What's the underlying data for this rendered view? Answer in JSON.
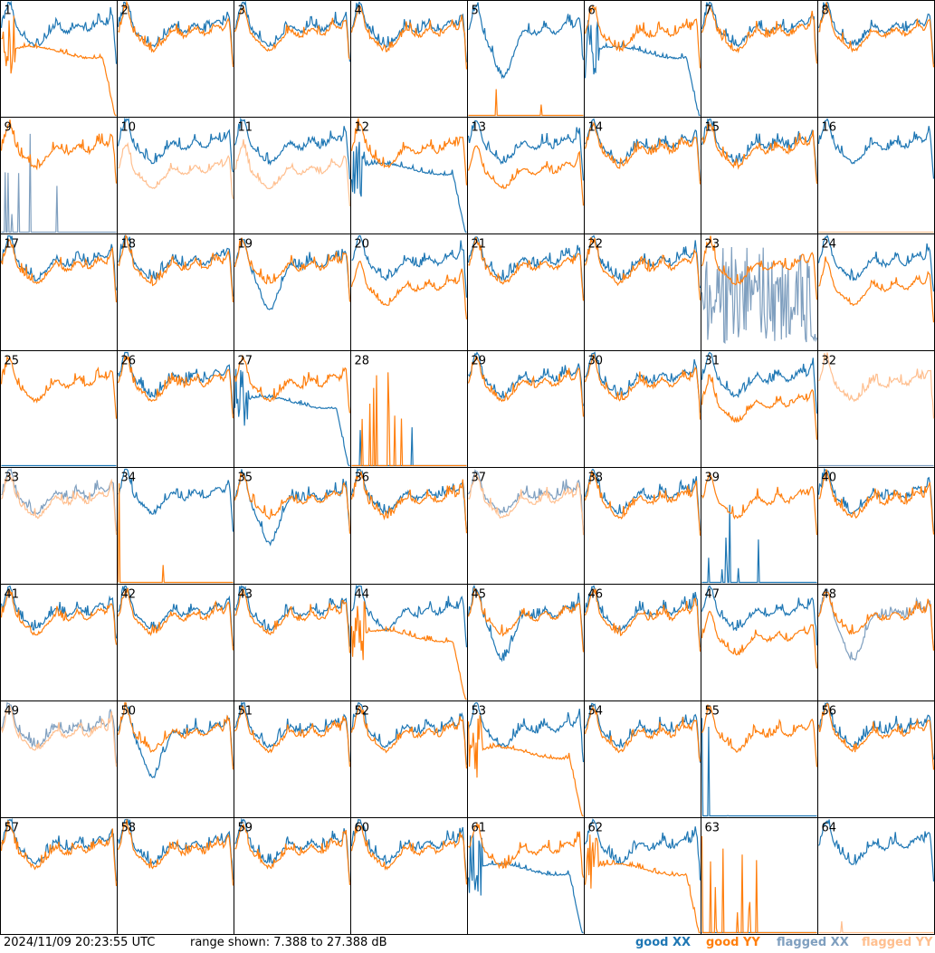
{
  "footer": {
    "timestamp": "2024/11/09 20:23:55 UTC",
    "range_text": "range shown: 7.388 to 27.388 dB"
  },
  "legend": [
    {
      "label": "good XX",
      "color": "#1f77b4"
    },
    {
      "label": "good YY",
      "color": "#ff7f0e"
    },
    {
      "label": "flagged XX",
      "color": "#7f9fbf"
    },
    {
      "label": "flagged YY",
      "color": "#ffbf8f"
    }
  ],
  "chart_data": {
    "type": "line",
    "grid": {
      "rows": 8,
      "cols": 8
    },
    "ylim": [
      7.388,
      27.388
    ],
    "yunit": "dB",
    "series_names": [
      "good XX",
      "good YY",
      "flagged XX",
      "flagged YY"
    ],
    "panels": [
      {
        "id": "1",
        "xx": "normal",
        "yy": "dropoff",
        "xx_flag": false,
        "yy_flag": false
      },
      {
        "id": "2",
        "xx": "normal",
        "yy": "normal",
        "xx_flag": false,
        "yy_flag": false
      },
      {
        "id": "3",
        "xx": "normal",
        "yy": "normal",
        "xx_flag": false,
        "yy_flag": false
      },
      {
        "id": "4",
        "xx": "normal",
        "yy": "normal",
        "xx_flag": false,
        "yy_flag": false
      },
      {
        "id": "5",
        "xx": "low_dip",
        "yy": "flat_zero",
        "xx_flag": false,
        "yy_flag": false
      },
      {
        "id": "6",
        "xx": "dropoff",
        "yy": "normal",
        "xx_flag": false,
        "yy_flag": false
      },
      {
        "id": "7",
        "xx": "normal",
        "yy": "normal",
        "xx_flag": false,
        "yy_flag": false
      },
      {
        "id": "8",
        "xx": "normal",
        "yy": "normal",
        "xx_flag": false,
        "yy_flag": false
      },
      {
        "id": "9",
        "xx": "spikes",
        "yy": "normal",
        "xx_flag": true,
        "yy_flag": false
      },
      {
        "id": "10",
        "xx": "normal",
        "yy": "low_flat",
        "xx_flag": false,
        "yy_flag": true
      },
      {
        "id": "11",
        "xx": "normal",
        "yy": "low_flat",
        "xx_flag": false,
        "yy_flag": true
      },
      {
        "id": "12",
        "xx": "dropoff",
        "yy": "normal",
        "xx_flag": false,
        "yy_flag": false
      },
      {
        "id": "13",
        "xx": "normal",
        "yy": "low_flat",
        "xx_flag": false,
        "yy_flag": false
      },
      {
        "id": "14",
        "xx": "normal",
        "yy": "normal",
        "xx_flag": false,
        "yy_flag": false
      },
      {
        "id": "15",
        "xx": "normal",
        "yy": "normal",
        "xx_flag": false,
        "yy_flag": false
      },
      {
        "id": "16",
        "xx": "normal",
        "yy": "flat_zero",
        "xx_flag": false,
        "yy_flag": true
      },
      {
        "id": "17",
        "xx": "normal",
        "yy": "normal",
        "xx_flag": false,
        "yy_flag": false
      },
      {
        "id": "18",
        "xx": "normal",
        "yy": "normal",
        "xx_flag": false,
        "yy_flag": false
      },
      {
        "id": "19",
        "xx": "low_dip",
        "yy": "normal",
        "xx_flag": false,
        "yy_flag": false
      },
      {
        "id": "20",
        "xx": "normal",
        "yy": "low_flat",
        "xx_flag": false,
        "yy_flag": false
      },
      {
        "id": "21",
        "xx": "normal",
        "yy": "normal",
        "xx_flag": false,
        "yy_flag": false
      },
      {
        "id": "22",
        "xx": "normal",
        "yy": "normal",
        "xx_flag": false,
        "yy_flag": false
      },
      {
        "id": "23",
        "xx": "noise",
        "yy": "normal",
        "xx_flag": true,
        "yy_flag": false
      },
      {
        "id": "24",
        "xx": "normal",
        "yy": "low_flat",
        "xx_flag": false,
        "yy_flag": false
      },
      {
        "id": "25",
        "xx": "flat_zero",
        "yy": "normal",
        "xx_flag": false,
        "yy_flag": false
      },
      {
        "id": "26",
        "xx": "normal",
        "yy": "normal",
        "xx_flag": false,
        "yy_flag": false
      },
      {
        "id": "27",
        "xx": "dropoff",
        "yy": "normal",
        "xx_flag": false,
        "yy_flag": false
      },
      {
        "id": "28",
        "xx": "flat_zero",
        "yy": "spikes",
        "xx_flag": false,
        "yy_flag": false
      },
      {
        "id": "29",
        "xx": "normal",
        "yy": "normal",
        "xx_flag": false,
        "yy_flag": false
      },
      {
        "id": "30",
        "xx": "normal",
        "yy": "normal",
        "xx_flag": false,
        "yy_flag": false
      },
      {
        "id": "31",
        "xx": "normal",
        "yy": "low_flat",
        "xx_flag": false,
        "yy_flag": false
      },
      {
        "id": "32",
        "xx": "flat_zero",
        "yy": "normal",
        "xx_flag": true,
        "yy_flag": true
      },
      {
        "id": "33",
        "xx": "normal",
        "yy": "normal",
        "xx_flag": true,
        "yy_flag": true
      },
      {
        "id": "34",
        "xx": "normal",
        "yy": "spikes",
        "xx_flag": false,
        "yy_flag": false
      },
      {
        "id": "35",
        "xx": "low_dip",
        "yy": "normal",
        "xx_flag": false,
        "yy_flag": false
      },
      {
        "id": "36",
        "xx": "normal",
        "yy": "normal",
        "xx_flag": false,
        "yy_flag": false
      },
      {
        "id": "37",
        "xx": "normal",
        "yy": "normal",
        "xx_flag": true,
        "yy_flag": true
      },
      {
        "id": "38",
        "xx": "normal",
        "yy": "normal",
        "xx_flag": false,
        "yy_flag": false
      },
      {
        "id": "39",
        "xx": "spikes",
        "yy": "normal",
        "xx_flag": false,
        "yy_flag": false
      },
      {
        "id": "40",
        "xx": "normal",
        "yy": "normal",
        "xx_flag": false,
        "yy_flag": false
      },
      {
        "id": "41",
        "xx": "normal",
        "yy": "normal",
        "xx_flag": false,
        "yy_flag": false
      },
      {
        "id": "42",
        "xx": "normal",
        "yy": "normal",
        "xx_flag": false,
        "yy_flag": false
      },
      {
        "id": "43",
        "xx": "normal",
        "yy": "normal",
        "xx_flag": false,
        "yy_flag": false
      },
      {
        "id": "44",
        "xx": "normal",
        "yy": "dropoff",
        "xx_flag": false,
        "yy_flag": false
      },
      {
        "id": "45",
        "xx": "low_dip",
        "yy": "normal",
        "xx_flag": false,
        "yy_flag": false
      },
      {
        "id": "46",
        "xx": "normal",
        "yy": "normal",
        "xx_flag": false,
        "yy_flag": false
      },
      {
        "id": "47",
        "xx": "normal",
        "yy": "low_flat",
        "xx_flag": false,
        "yy_flag": false
      },
      {
        "id": "48",
        "xx": "low_dip",
        "yy": "normal",
        "xx_flag": true,
        "yy_flag": false
      },
      {
        "id": "49",
        "xx": "normal",
        "yy": "normal",
        "xx_flag": true,
        "yy_flag": true
      },
      {
        "id": "50",
        "xx": "low_dip",
        "yy": "normal",
        "xx_flag": false,
        "yy_flag": false
      },
      {
        "id": "51",
        "xx": "normal",
        "yy": "normal",
        "xx_flag": false,
        "yy_flag": false
      },
      {
        "id": "52",
        "xx": "normal",
        "yy": "normal",
        "xx_flag": false,
        "yy_flag": false
      },
      {
        "id": "53",
        "xx": "normal",
        "yy": "dropoff",
        "xx_flag": false,
        "yy_flag": false
      },
      {
        "id": "54",
        "xx": "normal",
        "yy": "normal",
        "xx_flag": false,
        "yy_flag": false
      },
      {
        "id": "55",
        "xx": "spikes",
        "yy": "normal",
        "xx_flag": false,
        "yy_flag": false
      },
      {
        "id": "56",
        "xx": "normal",
        "yy": "normal",
        "xx_flag": false,
        "yy_flag": false
      },
      {
        "id": "57",
        "xx": "normal",
        "yy": "normal",
        "xx_flag": false,
        "yy_flag": false
      },
      {
        "id": "58",
        "xx": "normal",
        "yy": "normal",
        "xx_flag": false,
        "yy_flag": false
      },
      {
        "id": "59",
        "xx": "normal",
        "yy": "normal",
        "xx_flag": false,
        "yy_flag": false
      },
      {
        "id": "60",
        "xx": "normal",
        "yy": "normal",
        "xx_flag": false,
        "yy_flag": false
      },
      {
        "id": "61",
        "xx": "dropoff",
        "yy": "normal",
        "xx_flag": false,
        "yy_flag": false
      },
      {
        "id": "62",
        "xx": "normal",
        "yy": "dropoff",
        "xx_flag": false,
        "yy_flag": false
      },
      {
        "id": "63",
        "xx": "flat_zero",
        "yy": "spikes",
        "xx_flag": false,
        "yy_flag": false
      },
      {
        "id": "64",
        "xx": "normal",
        "yy": "flat_zero",
        "xx_flag": false,
        "yy_flag": true
      }
    ]
  }
}
